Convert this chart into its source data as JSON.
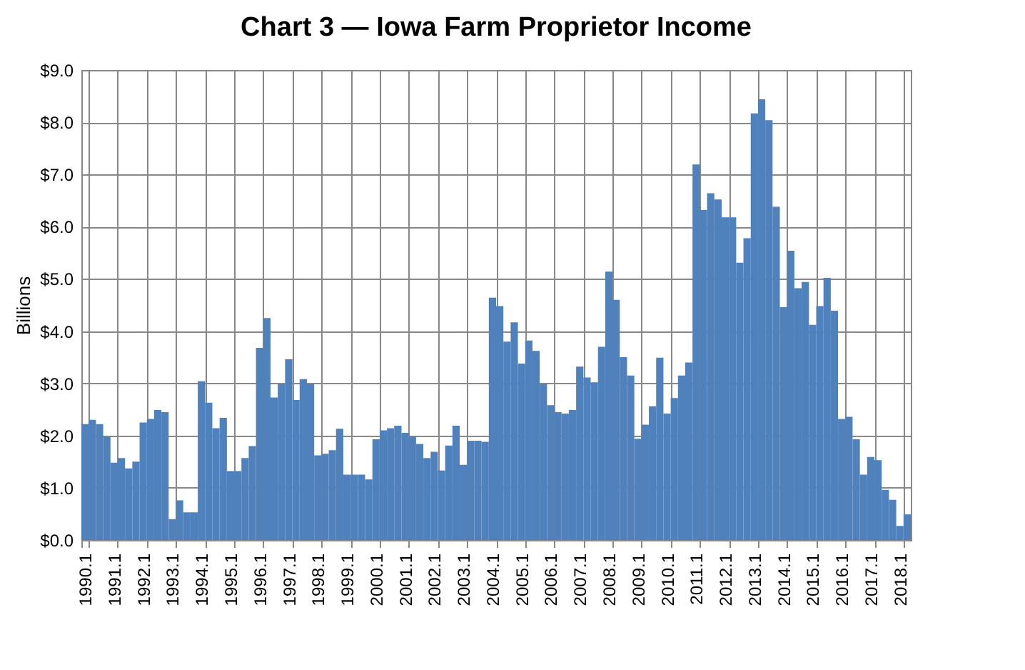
{
  "chart_data": {
    "type": "bar",
    "title": "Chart 3 — Iowa Farm Proprietor Income",
    "ylabel": "Billions",
    "categories": [
      "1990.1",
      null,
      null,
      null,
      "1991.1",
      null,
      null,
      null,
      "1992.1",
      null,
      null,
      null,
      "1993.1",
      null,
      null,
      null,
      "1994.1",
      null,
      null,
      null,
      "1995.1",
      null,
      null,
      null,
      "1996.1",
      null,
      null,
      null,
      "1997.1",
      null,
      null,
      null,
      "1998.1",
      null,
      null,
      null,
      "1999.1",
      null,
      null,
      null,
      "2000.1",
      null,
      null,
      null,
      "2001.1",
      null,
      null,
      null,
      "2002.1",
      null,
      null,
      null,
      "2003.1",
      null,
      null,
      null,
      "2004.1",
      null,
      null,
      null,
      "2005.1",
      null,
      null,
      null,
      "2006.1",
      null,
      null,
      null,
      "2007.1",
      null,
      null,
      null,
      "2008.1",
      null,
      null,
      null,
      "2009.1",
      null,
      null,
      null,
      "2010.1",
      null,
      null,
      null,
      "2011.1",
      null,
      null,
      null,
      "2012.1",
      null,
      null,
      null,
      "2013.1",
      null,
      null,
      null,
      "2014.1",
      null,
      null,
      null,
      "2015.1",
      null,
      null,
      null,
      "2016.1",
      null,
      null,
      null,
      "2017.1",
      null,
      null,
      null,
      "2018.1",
      null
    ],
    "values": [
      2.22,
      2.3,
      2.22,
      1.98,
      1.48,
      1.57,
      1.37,
      1.5,
      2.25,
      2.32,
      2.49,
      2.45,
      0.4,
      0.76,
      0.53,
      0.53,
      3.04,
      2.63,
      2.14,
      2.34,
      1.32,
      1.32,
      1.57,
      1.8,
      3.68,
      4.25,
      2.73,
      2.99,
      3.46,
      2.68,
      3.08,
      2.99,
      1.62,
      1.65,
      1.72,
      2.13,
      1.25,
      1.25,
      1.25,
      1.16,
      1.93,
      2.1,
      2.14,
      2.19,
      2.05,
      1.98,
      1.84,
      1.57,
      1.69,
      1.33,
      1.81,
      2.19,
      1.44,
      1.9,
      1.9,
      1.88,
      4.64,
      4.48,
      3.8,
      4.17,
      3.38,
      3.82,
      3.62,
      2.99,
      2.58,
      2.45,
      2.42,
      2.49,
      3.32,
      3.11,
      3.02,
      3.7,
      5.14,
      4.6,
      3.5,
      3.15,
      1.94,
      2.21,
      2.56,
      3.49,
      2.42,
      2.72,
      3.15,
      3.4,
      7.19,
      6.32,
      6.64,
      6.52,
      6.18,
      6.18,
      5.31,
      5.78,
      8.17,
      8.44,
      8.04,
      6.38,
      4.46,
      5.54,
      4.82,
      4.94,
      4.12,
      4.48,
      5.02,
      4.39,
      2.32,
      2.36,
      1.93,
      1.25,
      1.59,
      1.53,
      0.96,
      0.77,
      0.27,
      0.49
    ],
    "color": "#4f81bd",
    "ylim": [
      0,
      9
    ],
    "yticks": [
      {
        "value": 0,
        "label": "$0.0"
      },
      {
        "value": 1,
        "label": "$1.0"
      },
      {
        "value": 2,
        "label": "$2.0"
      },
      {
        "value": 3,
        "label": "$3.0"
      },
      {
        "value": 4,
        "label": "$4.0"
      },
      {
        "value": 5,
        "label": "$5.0"
      },
      {
        "value": 6,
        "label": "$6.0"
      },
      {
        "value": 7,
        "label": "$7.0"
      },
      {
        "value": 8,
        "label": "$8.0"
      },
      {
        "value": 9,
        "label": "$9.0"
      }
    ],
    "grid": true
  }
}
